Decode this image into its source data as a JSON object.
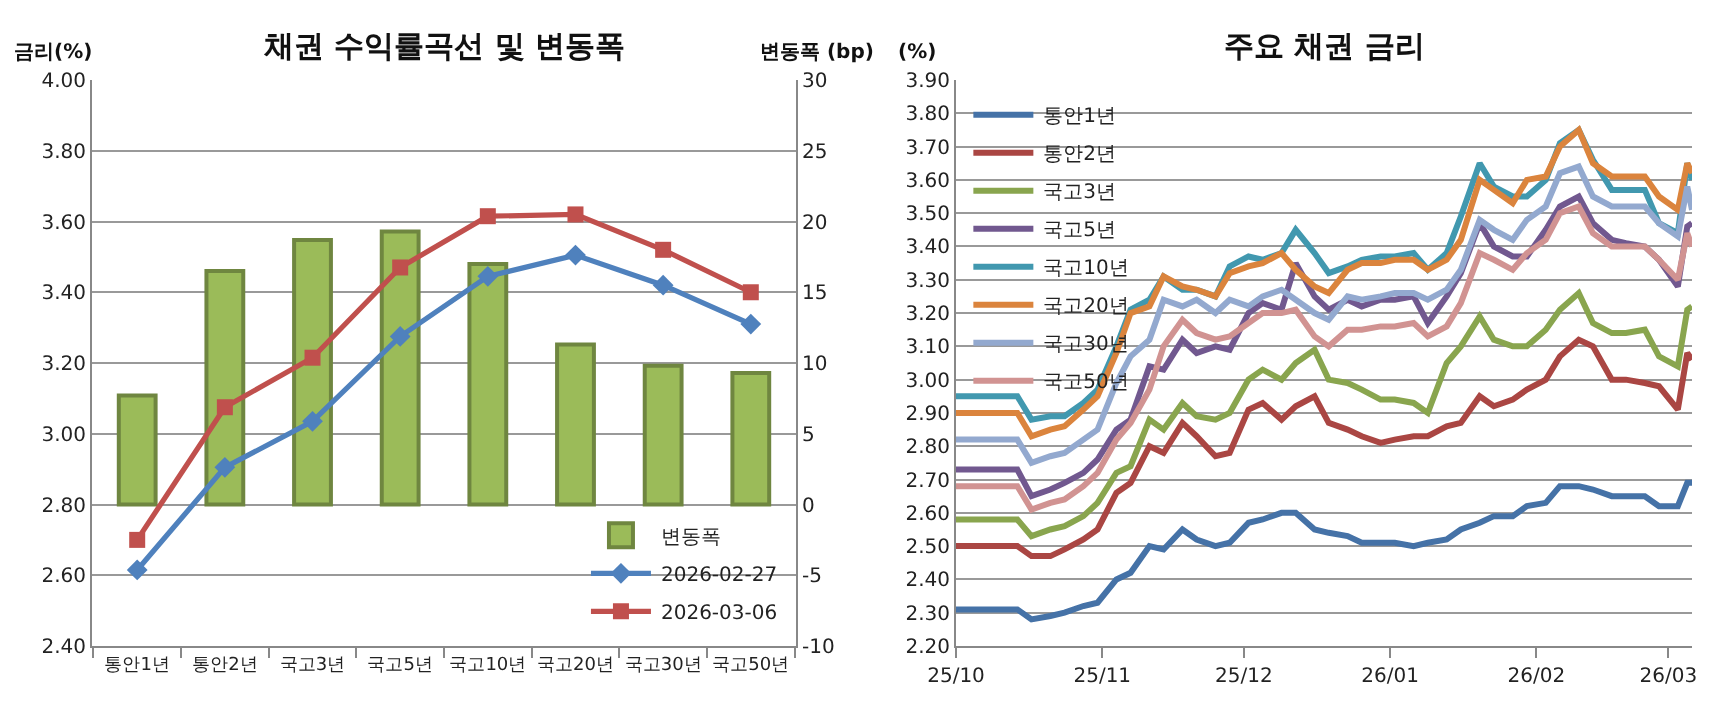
{
  "chart_data": [
    {
      "type": "line",
      "title": "채권 수익률곡선 및 변동폭",
      "ylabel": "금리(%)",
      "y2label": "변동폭 (bp)",
      "categories": [
        "통안1년",
        "통안2년",
        "국고3년",
        "국고5년",
        "국고10년",
        "국고20년",
        "국고30년",
        "국고50년"
      ],
      "series": [
        {
          "name": "변동폭",
          "type": "bar",
          "axis": "y2",
          "color": "#9bbb59",
          "values": [
            7.7,
            16.5,
            18.7,
            19.3,
            17.0,
            11.3,
            9.8,
            9.3
          ]
        },
        {
          "name": "2026-02-27",
          "color": "#4f81bd",
          "marker": "diamond",
          "values": [
            2.615,
            2.905,
            3.035,
            3.275,
            3.445,
            3.505,
            3.42,
            3.31
          ]
        },
        {
          "name": "2026-03-06",
          "color": "#c0504d",
          "marker": "square",
          "values": [
            2.7,
            3.075,
            3.215,
            3.47,
            3.615,
            3.62,
            3.52,
            3.4
          ]
        }
      ],
      "ylim": [
        2.4,
        4.0
      ],
      "yticks": [
        {
          "value": 2.4,
          "label": "2.40"
        },
        {
          "value": 2.6,
          "label": "2.60"
        },
        {
          "value": 2.8,
          "label": "2.80"
        },
        {
          "value": 3.0,
          "label": "3.00"
        },
        {
          "value": 3.2,
          "label": "3.20"
        },
        {
          "value": 3.4,
          "label": "3.40"
        },
        {
          "value": 3.6,
          "label": "3.60"
        },
        {
          "value": 3.8,
          "label": "3.80"
        },
        {
          "value": 4.0,
          "label": "4.00"
        }
      ],
      "y2lim": [
        -10,
        30
      ],
      "y2ticks": [
        -10,
        -5,
        0,
        5,
        10,
        15,
        20,
        25,
        30
      ],
      "grid": "y",
      "legend": "bottom right"
    },
    {
      "type": "line",
      "title": "주요 채권 금리",
      "ylabel": "(%)",
      "x": [
        "2025-10-01",
        "2025-10-08",
        "2025-10-14",
        "2025-10-17",
        "2025-10-21",
        "2025-10-24",
        "2025-10-28",
        "2025-10-31",
        "2025-11-04",
        "2025-11-07",
        "2025-11-11",
        "2025-11-14",
        "2025-11-18",
        "2025-11-21",
        "2025-11-25",
        "2025-11-28",
        "2025-12-02",
        "2025-12-05",
        "2025-12-09",
        "2025-12-12",
        "2025-12-16",
        "2025-12-19",
        "2025-12-23",
        "2025-12-26",
        "2025-12-30",
        "2026-01-02",
        "2026-01-06",
        "2026-01-09",
        "2026-01-13",
        "2026-01-16",
        "2026-01-20",
        "2026-01-23",
        "2026-01-27",
        "2026-01-30",
        "2026-02-03",
        "2026-02-06",
        "2026-02-10",
        "2026-02-13",
        "2026-02-17",
        "2026-02-20",
        "2026-02-24",
        "2026-02-27",
        "2026-03-03",
        "2026-03-05",
        "2026-03-06"
      ],
      "series": [
        {
          "name": "통안1년",
          "color": "#4572a7",
          "values": [
            2.31,
            2.31,
            2.31,
            2.28,
            2.29,
            2.3,
            2.32,
            2.33,
            2.4,
            2.42,
            2.5,
            2.49,
            2.55,
            2.52,
            2.5,
            2.51,
            2.57,
            2.58,
            2.6,
            2.6,
            2.55,
            2.54,
            2.53,
            2.51,
            2.51,
            2.51,
            2.5,
            2.51,
            2.52,
            2.55,
            2.57,
            2.59,
            2.59,
            2.62,
            2.63,
            2.68,
            2.68,
            2.67,
            2.65,
            2.65,
            2.65,
            2.62,
            2.62,
            2.69,
            2.69
          ]
        },
        {
          "name": "통안2년",
          "color": "#aa4643",
          "values": [
            2.5,
            2.5,
            2.5,
            2.47,
            2.47,
            2.49,
            2.52,
            2.55,
            2.66,
            2.69,
            2.8,
            2.78,
            2.87,
            2.83,
            2.77,
            2.78,
            2.91,
            2.93,
            2.88,
            2.92,
            2.95,
            2.87,
            2.85,
            2.83,
            2.81,
            2.82,
            2.83,
            2.83,
            2.86,
            2.87,
            2.95,
            2.92,
            2.94,
            2.97,
            3.0,
            3.07,
            3.12,
            3.1,
            3.0,
            3.0,
            2.99,
            2.98,
            2.91,
            3.08,
            3.06
          ]
        },
        {
          "name": "국고3년",
          "color": "#89a54e",
          "values": [
            2.58,
            2.58,
            2.58,
            2.53,
            2.55,
            2.56,
            2.59,
            2.63,
            2.72,
            2.74,
            2.88,
            2.85,
            2.93,
            2.89,
            2.88,
            2.9,
            3.0,
            3.03,
            3.0,
            3.05,
            3.09,
            3.0,
            2.99,
            2.97,
            2.94,
            2.94,
            2.93,
            2.9,
            3.05,
            3.1,
            3.19,
            3.12,
            3.1,
            3.1,
            3.15,
            3.21,
            3.26,
            3.17,
            3.14,
            3.14,
            3.15,
            3.07,
            3.04,
            3.21,
            3.22
          ]
        },
        {
          "name": "국고5년",
          "color": "#71588f",
          "values": [
            2.73,
            2.73,
            2.73,
            2.65,
            2.67,
            2.69,
            2.72,
            2.76,
            2.85,
            2.88,
            3.04,
            3.03,
            3.12,
            3.08,
            3.1,
            3.09,
            3.2,
            3.23,
            3.21,
            3.35,
            3.25,
            3.21,
            3.24,
            3.22,
            3.24,
            3.24,
            3.25,
            3.17,
            3.25,
            3.32,
            3.47,
            3.4,
            3.37,
            3.37,
            3.45,
            3.52,
            3.55,
            3.47,
            3.42,
            3.41,
            3.4,
            3.36,
            3.28,
            3.46,
            3.47
          ]
        },
        {
          "name": "국고10년",
          "color": "#4198af",
          "values": [
            2.95,
            2.95,
            2.95,
            2.88,
            2.89,
            2.89,
            2.93,
            2.97,
            3.1,
            3.21,
            3.24,
            3.31,
            3.27,
            3.27,
            3.25,
            3.34,
            3.37,
            3.36,
            3.38,
            3.45,
            3.38,
            3.32,
            3.34,
            3.36,
            3.37,
            3.37,
            3.38,
            3.33,
            3.38,
            3.49,
            3.65,
            3.58,
            3.55,
            3.55,
            3.6,
            3.71,
            3.75,
            3.66,
            3.57,
            3.57,
            3.57,
            3.47,
            3.44,
            3.65,
            3.6
          ]
        },
        {
          "name": "국고20년",
          "color": "#db843d",
          "values": [
            2.9,
            2.9,
            2.9,
            2.83,
            2.85,
            2.86,
            2.91,
            2.95,
            3.08,
            3.2,
            3.22,
            3.31,
            3.28,
            3.27,
            3.25,
            3.32,
            3.34,
            3.35,
            3.38,
            3.33,
            3.28,
            3.26,
            3.33,
            3.35,
            3.35,
            3.36,
            3.36,
            3.33,
            3.36,
            3.42,
            3.6,
            3.57,
            3.53,
            3.6,
            3.61,
            3.7,
            3.75,
            3.65,
            3.61,
            3.61,
            3.61,
            3.55,
            3.51,
            3.65,
            3.62
          ]
        },
        {
          "name": "국고30년",
          "color": "#93a9cf",
          "values": [
            2.82,
            2.82,
            2.82,
            2.75,
            2.77,
            2.78,
            2.82,
            2.85,
            2.99,
            3.07,
            3.12,
            3.24,
            3.22,
            3.24,
            3.2,
            3.24,
            3.22,
            3.25,
            3.27,
            3.24,
            3.2,
            3.18,
            3.25,
            3.24,
            3.25,
            3.26,
            3.26,
            3.24,
            3.27,
            3.33,
            3.48,
            3.45,
            3.42,
            3.48,
            3.52,
            3.62,
            3.64,
            3.55,
            3.52,
            3.52,
            3.52,
            3.47,
            3.43,
            3.58,
            3.51
          ]
        },
        {
          "name": "국고50년",
          "color": "#d19392",
          "values": [
            2.68,
            2.68,
            2.68,
            2.61,
            2.63,
            2.64,
            2.68,
            2.72,
            2.82,
            2.87,
            2.97,
            3.1,
            3.18,
            3.14,
            3.12,
            3.13,
            3.17,
            3.2,
            3.2,
            3.21,
            3.13,
            3.1,
            3.15,
            3.15,
            3.16,
            3.16,
            3.17,
            3.13,
            3.16,
            3.23,
            3.38,
            3.36,
            3.33,
            3.38,
            3.42,
            3.5,
            3.52,
            3.44,
            3.4,
            3.4,
            3.4,
            3.36,
            3.3,
            3.44,
            3.4
          ]
        }
      ],
      "xlim": [
        "2025-10-01",
        "2026-03-06"
      ],
      "xticks": [
        {
          "value": "2025-10-01",
          "label": "25/10"
        },
        {
          "value": "2025-11-01",
          "label": "25/11"
        },
        {
          "value": "2025-12-01",
          "label": "25/12"
        },
        {
          "value": "2026-01-01",
          "label": "26/01"
        },
        {
          "value": "2026-02-01",
          "label": "26/02"
        },
        {
          "value": "2026-03-01",
          "label": "26/03"
        }
      ],
      "ylim": [
        2.2,
        3.9
      ],
      "yticks": [
        {
          "value": 2.2,
          "label": "2.20"
        },
        {
          "value": 2.3,
          "label": "2.30"
        },
        {
          "value": 2.4,
          "label": "2.40"
        },
        {
          "value": 2.5,
          "label": "2.50"
        },
        {
          "value": 2.6,
          "label": "2.60"
        },
        {
          "value": 2.7,
          "label": "2.70"
        },
        {
          "value": 2.8,
          "label": "2.80"
        },
        {
          "value": 2.9,
          "label": "2.90"
        },
        {
          "value": 3.0,
          "label": "3.00"
        },
        {
          "value": 3.1,
          "label": "3.10"
        },
        {
          "value": 3.2,
          "label": "3.20"
        },
        {
          "value": 3.3,
          "label": "3.30"
        },
        {
          "value": 3.4,
          "label": "3.40"
        },
        {
          "value": 3.5,
          "label": "3.50"
        },
        {
          "value": 3.6,
          "label": "3.60"
        },
        {
          "value": 3.7,
          "label": "3.70"
        },
        {
          "value": 3.8,
          "label": "3.80"
        },
        {
          "value": 3.9,
          "label": "3.90"
        }
      ],
      "grid": "y",
      "legend": "top left",
      "marker": "none"
    }
  ]
}
